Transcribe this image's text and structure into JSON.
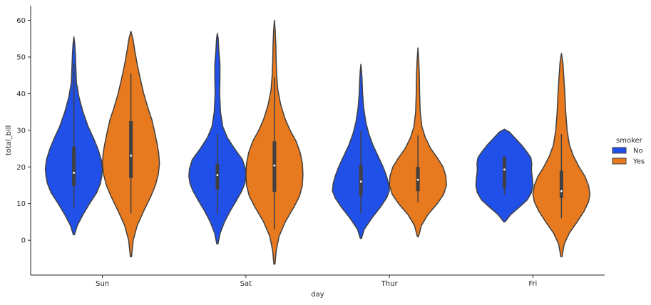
{
  "chart_data": {
    "type": "violin",
    "xlabel": "day",
    "ylabel": "total_bill",
    "categories": [
      "Sun",
      "Sat",
      "Thur",
      "Fri"
    ],
    "ylim": [
      -9.5,
      64
    ],
    "yticks": [
      0,
      10,
      20,
      30,
      40,
      50,
      60
    ],
    "legend": {
      "title": "smoker",
      "placement": "right",
      "entries": [
        {
          "label": "No",
          "color": "#2150e8"
        },
        {
          "label": "Yes",
          "color": "#e7791f"
        }
      ]
    },
    "grid": false,
    "series": [
      {
        "name": "No",
        "color": "#2150e8",
        "violins": [
          {
            "category": "Sun",
            "min": 1.5,
            "max": 55.5,
            "q1": 14.8,
            "median": 18.4,
            "q3": 25.5,
            "whisker_low": 8.8,
            "whisker_high": 48.2,
            "density": [
              [
                1.5,
                0.02
              ],
              [
                4,
                0.12
              ],
              [
                7,
                0.32
              ],
              [
                10,
                0.55
              ],
              [
                13,
                0.8
              ],
              [
                15.5,
                0.93
              ],
              [
                17.5,
                0.98
              ],
              [
                19.5,
                1.0
              ],
              [
                22,
                0.96
              ],
              [
                25,
                0.84
              ],
              [
                28,
                0.68
              ],
              [
                31,
                0.5
              ],
              [
                35,
                0.32
              ],
              [
                39,
                0.18
              ],
              [
                43,
                0.09
              ],
              [
                47,
                0.07
              ],
              [
                51,
                0.05
              ],
              [
                53.5,
                0.03
              ],
              [
                55.5,
                0.0
              ]
            ]
          },
          {
            "category": "Sat",
            "min": -1.0,
            "max": 56.5,
            "q1": 13.9,
            "median": 17.8,
            "q3": 20.8,
            "whisker_low": 7.2,
            "whisker_high": 29.0,
            "density": [
              [
                -1,
                0.02
              ],
              [
                2,
                0.1
              ],
              [
                5,
                0.25
              ],
              [
                8,
                0.45
              ],
              [
                11,
                0.68
              ],
              [
                13.5,
                0.86
              ],
              [
                15.5,
                0.96
              ],
              [
                17.5,
                1.0
              ],
              [
                19.5,
                0.98
              ],
              [
                22,
                0.88
              ],
              [
                25,
                0.6
              ],
              [
                28,
                0.35
              ],
              [
                31,
                0.19
              ],
              [
                35,
                0.11
              ],
              [
                40,
                0.08
              ],
              [
                45,
                0.09
              ],
              [
                48,
                0.09
              ],
              [
                52,
                0.05
              ],
              [
                55,
                0.03
              ],
              [
                56.5,
                0.0
              ]
            ]
          },
          {
            "category": "Thur",
            "min": 0.5,
            "max": 48.0,
            "q1": 12.2,
            "median": 16.0,
            "q3": 20.5,
            "whisker_low": 7.4,
            "whisker_high": 29.8,
            "density": [
              [
                0.5,
                0.02
              ],
              [
                3,
                0.12
              ],
              [
                6,
                0.38
              ],
              [
                9,
                0.68
              ],
              [
                11.5,
                0.9
              ],
              [
                13.5,
                1.0
              ],
              [
                15.5,
                0.97
              ],
              [
                17.5,
                0.9
              ],
              [
                20,
                0.78
              ],
              [
                23,
                0.6
              ],
              [
                26,
                0.42
              ],
              [
                29,
                0.28
              ],
              [
                32,
                0.18
              ],
              [
                36,
                0.1
              ],
              [
                40,
                0.06
              ],
              [
                44,
                0.04
              ],
              [
                46.5,
                0.02
              ],
              [
                48,
                0.0
              ]
            ]
          },
          {
            "category": "Fri",
            "min": 5.0,
            "max": 30.3,
            "q1": 14.2,
            "median": 19.3,
            "q3": 22.8,
            "whisker_low": 12.5,
            "whisker_high": 22.8,
            "density": [
              [
                5,
                0.02
              ],
              [
                7,
                0.22
              ],
              [
                9,
                0.52
              ],
              [
                11,
                0.8
              ],
              [
                13,
                0.95
              ],
              [
                15,
                1.0
              ],
              [
                17,
                0.98
              ],
              [
                19,
                0.95
              ],
              [
                21,
                0.96
              ],
              [
                22.5,
                0.93
              ],
              [
                24,
                0.8
              ],
              [
                26,
                0.6
              ],
              [
                28,
                0.36
              ],
              [
                29.5,
                0.18
              ],
              [
                30.3,
                0.0
              ]
            ]
          }
        ]
      },
      {
        "name": "Yes",
        "color": "#e7791f",
        "violins": [
          {
            "category": "Sun",
            "min": -4.5,
            "max": 57.0,
            "q1": 17.0,
            "median": 23.1,
            "q3": 32.5,
            "whisker_low": 7.3,
            "whisker_high": 45.5,
            "density": [
              [
                -4.5,
                0.02
              ],
              [
                0,
                0.08
              ],
              [
                4,
                0.22
              ],
              [
                8,
                0.45
              ],
              [
                12,
                0.7
              ],
              [
                15,
                0.86
              ],
              [
                18,
                0.96
              ],
              [
                21,
                1.0
              ],
              [
                24,
                0.97
              ],
              [
                27,
                0.9
              ],
              [
                30,
                0.82
              ],
              [
                33,
                0.73
              ],
              [
                36,
                0.6
              ],
              [
                40,
                0.45
              ],
              [
                44,
                0.33
              ],
              [
                48,
                0.22
              ],
              [
                52,
                0.13
              ],
              [
                55,
                0.07
              ],
              [
                57,
                0.0
              ]
            ]
          },
          {
            "category": "Sat",
            "min": -6.5,
            "max": 60.0,
            "q1": 13.2,
            "median": 20.4,
            "q3": 27.0,
            "whisker_low": 3.1,
            "whisker_high": 44.5,
            "density": [
              [
                -6.5,
                0.02
              ],
              [
                -3,
                0.06
              ],
              [
                1,
                0.16
              ],
              [
                5,
                0.38
              ],
              [
                9,
                0.68
              ],
              [
                12,
                0.88
              ],
              [
                15,
                0.98
              ],
              [
                18,
                1.0
              ],
              [
                21,
                0.98
              ],
              [
                24,
                0.9
              ],
              [
                27,
                0.76
              ],
              [
                30,
                0.55
              ],
              [
                33,
                0.38
              ],
              [
                37,
                0.22
              ],
              [
                41,
                0.12
              ],
              [
                45,
                0.08
              ],
              [
                49,
                0.06
              ],
              [
                53,
                0.05
              ],
              [
                57,
                0.03
              ],
              [
                60,
                0.0
              ]
            ]
          },
          {
            "category": "Thur",
            "min": 1.0,
            "max": 52.5,
            "q1": 13.4,
            "median": 16.5,
            "q3": 20.0,
            "whisker_low": 10.3,
            "whisker_high": 28.6,
            "density": [
              [
                1,
                0.02
              ],
              [
                4,
                0.12
              ],
              [
                7,
                0.35
              ],
              [
                10,
                0.68
              ],
              [
                12.5,
                0.9
              ],
              [
                15,
                1.0
              ],
              [
                17.5,
                0.98
              ],
              [
                20,
                0.88
              ],
              [
                22.5,
                0.68
              ],
              [
                25,
                0.45
              ],
              [
                28,
                0.26
              ],
              [
                31,
                0.14
              ],
              [
                35,
                0.08
              ],
              [
                40,
                0.06
              ],
              [
                45,
                0.05
              ],
              [
                49,
                0.03
              ],
              [
                52.5,
                0.0
              ]
            ]
          },
          {
            "category": "Fri",
            "min": -4.5,
            "max": 51.0,
            "q1": 11.5,
            "median": 13.4,
            "q3": 19.0,
            "whisker_low": 6.0,
            "whisker_high": 29.0,
            "density": [
              [
                -4.5,
                0.02
              ],
              [
                -1,
                0.1
              ],
              [
                2,
                0.28
              ],
              [
                5,
                0.55
              ],
              [
                8,
                0.8
              ],
              [
                10.5,
                0.95
              ],
              [
                12.5,
                1.0
              ],
              [
                15,
                0.95
              ],
              [
                17.5,
                0.82
              ],
              [
                20,
                0.62
              ],
              [
                23,
                0.42
              ],
              [
                26,
                0.28
              ],
              [
                30,
                0.2
              ],
              [
                35,
                0.15
              ],
              [
                40,
                0.12
              ],
              [
                45,
                0.08
              ],
              [
                48.5,
                0.05
              ],
              [
                51,
                0.0
              ]
            ]
          }
        ]
      }
    ]
  }
}
